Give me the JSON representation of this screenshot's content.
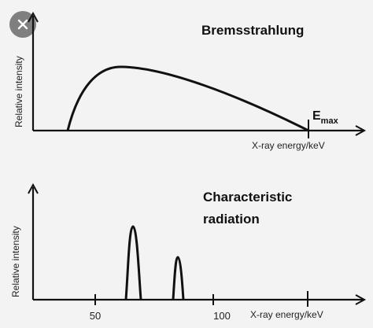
{
  "top_panel": {
    "title": "Bremsstrahlung",
    "ylabel": "Relative intensity",
    "xlabel": "X-ray energy/keV",
    "emax_main": "E",
    "emax_sub": "max"
  },
  "bottom_panel": {
    "title_line1": "Characteristic",
    "title_line2": "radiation",
    "ylabel": "Relative intensity",
    "xlabel": "X-ray energy/keV",
    "ticks": [
      "50",
      "100"
    ]
  },
  "icons": {
    "close": "close-icon"
  },
  "colors": {
    "ink": "#111111",
    "background": "#f3f3f3",
    "close_button": "#7f7f7f"
  }
}
